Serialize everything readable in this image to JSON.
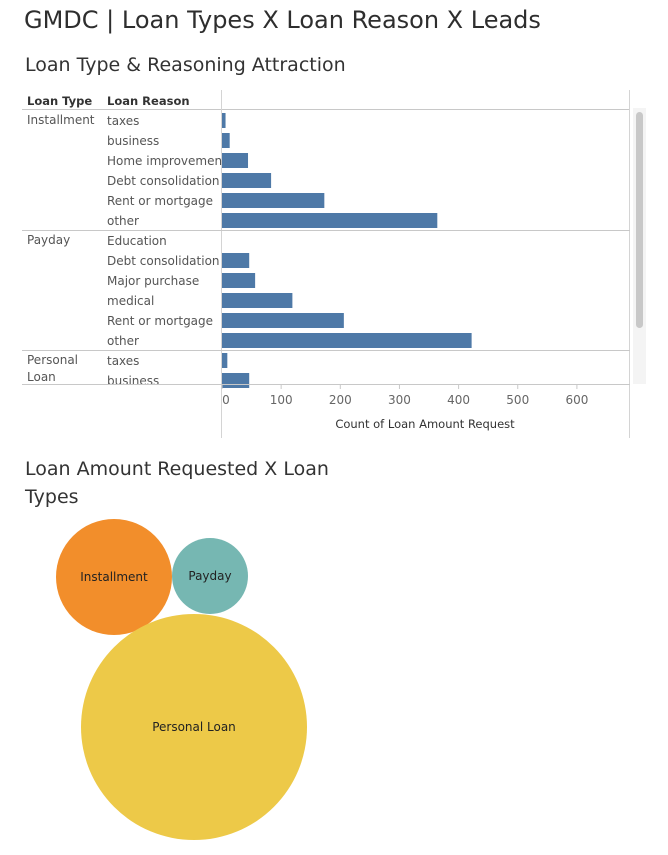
{
  "dashboard_title": "GMDC | Loan Types X Loan Reason X Leads",
  "sheet1": {
    "title": "Loan Type & Reasoning Attraction",
    "col_header_type": "Loan Type",
    "col_header_reason": "Loan Reason"
  },
  "sheet2": {
    "title": "Loan Amount Requested X Loan Types"
  },
  "colors": {
    "bar": "#4e79a7",
    "installment": "#f28e2b",
    "payday": "#76b7b2",
    "personal_loan": "#edc948"
  },
  "chart_data": [
    {
      "type": "bar",
      "orientation": "horizontal",
      "xlabel": "Count of Loan Amount Request",
      "xlim": [
        0,
        700
      ],
      "xticks": [
        0,
        100,
        200,
        300,
        400,
        500,
        600
      ],
      "grid": false,
      "groups": [
        {
          "loan_type": "Installment",
          "rows": [
            {
              "reason": "taxes",
              "value": 6
            },
            {
              "reason": "business",
              "value": 13
            },
            {
              "reason": "Home improvement",
              "value": 44
            },
            {
              "reason": "Debt consolidation",
              "value": 83
            },
            {
              "reason": "Rent or mortgage",
              "value": 173
            },
            {
              "reason": "other",
              "value": 364
            }
          ]
        },
        {
          "loan_type": "Payday",
          "rows": [
            {
              "reason": "Education",
              "value": 0
            },
            {
              "reason": "Debt consolidation",
              "value": 46
            },
            {
              "reason": "Major purchase",
              "value": 56
            },
            {
              "reason": "medical",
              "value": 119
            },
            {
              "reason": "Rent or mortgage",
              "value": 206
            },
            {
              "reason": "other",
              "value": 422
            }
          ]
        },
        {
          "loan_type": "Personal Loan",
          "loan_type_lines": [
            "Personal",
            "Loan"
          ],
          "rows": [
            {
              "reason": "taxes",
              "value": 9
            },
            {
              "reason": "business",
              "value": 46
            }
          ]
        }
      ]
    },
    {
      "type": "bubble",
      "bubbles": [
        {
          "label": "Installment",
          "size": 0.27
        },
        {
          "label": "Payday",
          "size": 0.11
        },
        {
          "label": "Personal Loan",
          "size": 1.0
        }
      ]
    }
  ]
}
